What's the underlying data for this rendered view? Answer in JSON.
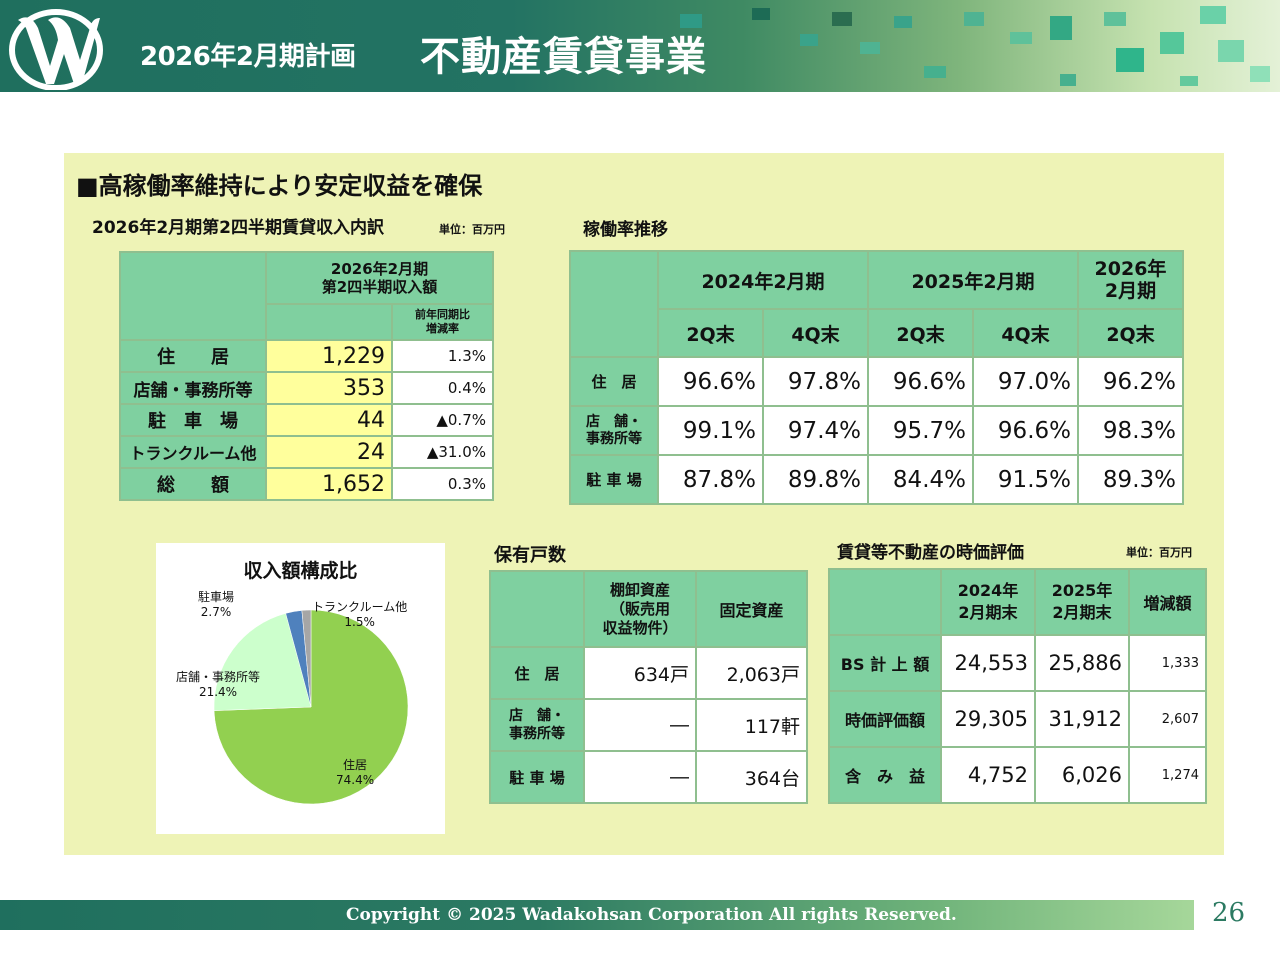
{
  "header": {
    "subtitle": "2026年2月期計画",
    "title": "不動産賃貸事業",
    "colors": {
      "primary": "#237363",
      "accent": "#7fd0a0"
    }
  },
  "main": {
    "heading": "■高稼働率維持により安定収益を確保",
    "revenue_table": {
      "title": "2026年2月期第2四半期賃貸収入内訳",
      "unit": "単位：百万円",
      "col_header": "2026年2月期\n第2四半期収入額",
      "col_subheader": "前年同期比\n増減率",
      "rows": [
        {
          "label": "住　　居",
          "amount": "1,229",
          "change": "1.3%"
        },
        {
          "label": "店舗・事務所等",
          "amount": "353",
          "change": "0.4%"
        },
        {
          "label": "駐　車　場",
          "amount": "44",
          "change": "▲0.7%"
        },
        {
          "label": "トランクルーム他",
          "amount": "24",
          "change": "▲31.0%"
        },
        {
          "label": "総　　額",
          "amount": "1,652",
          "change": "0.3%"
        }
      ]
    },
    "occupancy_table": {
      "title": "稼働率推移",
      "periods": [
        "2024年2月期",
        "2025年2月期",
        "2026年\n2月期"
      ],
      "quarters": [
        "2Q末",
        "4Q末",
        "2Q末",
        "4Q末",
        "2Q末"
      ],
      "rows": [
        {
          "label": "住　居",
          "values": [
            "96.6%",
            "97.8%",
            "96.6%",
            "97.0%",
            "96.2%"
          ]
        },
        {
          "label": "店　舗・\n事務所等",
          "values": [
            "99.1%",
            "97.4%",
            "95.7%",
            "96.6%",
            "98.3%"
          ]
        },
        {
          "label": "駐 車 場",
          "values": [
            "87.8%",
            "89.8%",
            "84.4%",
            "91.5%",
            "89.3%"
          ]
        }
      ]
    },
    "pie": {
      "title": "収入額構成比",
      "chart_data": {
        "type": "pie",
        "title": "収入額構成比",
        "slices": [
          {
            "name": "住居",
            "value": 74.4,
            "label": "74.4%",
            "color": "#92d050"
          },
          {
            "name": "店舗・事務所等",
            "value": 21.4,
            "label": "21.4%",
            "color": "#ccffcc"
          },
          {
            "name": "駐車場",
            "value": 2.7,
            "label": "2.7%",
            "color": "#4f81bd"
          },
          {
            "name": "トランクルーム他",
            "value": 1.5,
            "label": "1.5%",
            "color": "#a6a6a6"
          }
        ]
      }
    },
    "units_table": {
      "title": "保有戸数",
      "headers": [
        "棚卸資産\n（販売用\n収益物件）",
        "固定資産"
      ],
      "rows": [
        {
          "label": "住　居",
          "inventory": "634戸",
          "fixed": "2,063戸"
        },
        {
          "label": "店　舗・\n事務所等",
          "inventory": "―",
          "fixed": "117軒"
        },
        {
          "label": "駐 車 場",
          "inventory": "―",
          "fixed": "364台"
        }
      ]
    },
    "valuation_table": {
      "title": "賃貸等不動産の時価評価",
      "unit": "単位：百万円",
      "headers": [
        "2024年\n2月期末",
        "2025年\n2月期末",
        "増減額"
      ],
      "rows": [
        {
          "label": "BS 計 上 額",
          "v2024": "24,553",
          "v2025": "25,886",
          "diff": "1,333"
        },
        {
          "label": "時価評価額",
          "v2024": "29,305",
          "v2025": "31,912",
          "diff": "2,607"
        },
        {
          "label": "含　み　益",
          "v2024": "4,752",
          "v2025": "6,026",
          "diff": "1,274"
        }
      ]
    }
  },
  "footer": {
    "copyright": "Copyright © 2025 Wadakohsan Corporation All rights Reserved.",
    "page_number": "26"
  }
}
